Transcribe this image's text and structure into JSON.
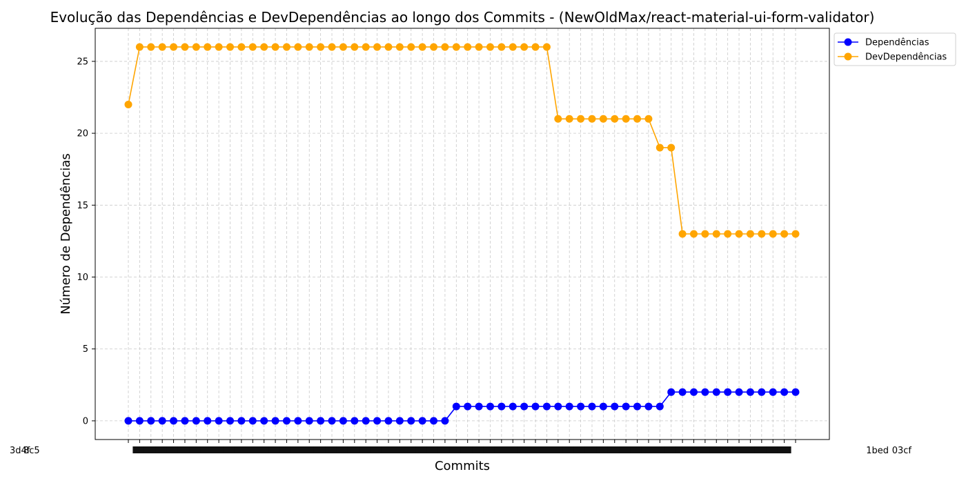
{
  "chart_data": {
    "type": "line",
    "title": "Evolução das Dependências e DevDependências ao longo dos Commits - (NewOldMax/react-material-ui-form-validator)",
    "xlabel": "Commits",
    "ylabel": "Número de Dependências",
    "ylim": [
      -1.3,
      27.3
    ],
    "yticks": [
      0,
      5,
      10,
      15,
      20,
      25
    ],
    "grid": true,
    "legend_position": "top-right",
    "x_tick_labels_visible": [
      "3d4f",
      "8c5",
      "1bed",
      "03cf"
    ],
    "series": [
      {
        "name": "Dependências",
        "color": "#0000ff",
        "values": [
          0,
          0,
          0,
          0,
          0,
          0,
          0,
          0,
          0,
          0,
          0,
          0,
          0,
          0,
          0,
          0,
          0,
          0,
          0,
          0,
          0,
          0,
          0,
          0,
          0,
          0,
          0,
          0,
          0,
          1,
          1,
          1,
          1,
          1,
          1,
          1,
          1,
          1,
          1,
          1,
          1,
          1,
          1,
          1,
          1,
          1,
          1,
          1,
          2,
          2,
          2,
          2,
          2,
          2,
          2,
          2,
          2,
          2,
          2,
          2
        ]
      },
      {
        "name": "DevDependências",
        "color": "#ffa500",
        "values": [
          22,
          26,
          26,
          26,
          26,
          26,
          26,
          26,
          26,
          26,
          26,
          26,
          26,
          26,
          26,
          26,
          26,
          26,
          26,
          26,
          26,
          26,
          26,
          26,
          26,
          26,
          26,
          26,
          26,
          26,
          26,
          26,
          26,
          26,
          26,
          26,
          26,
          26,
          21,
          21,
          21,
          21,
          21,
          21,
          21,
          21,
          21,
          19,
          19,
          13,
          13,
          13,
          13,
          13,
          13,
          13,
          13,
          13,
          13,
          13
        ]
      }
    ]
  }
}
